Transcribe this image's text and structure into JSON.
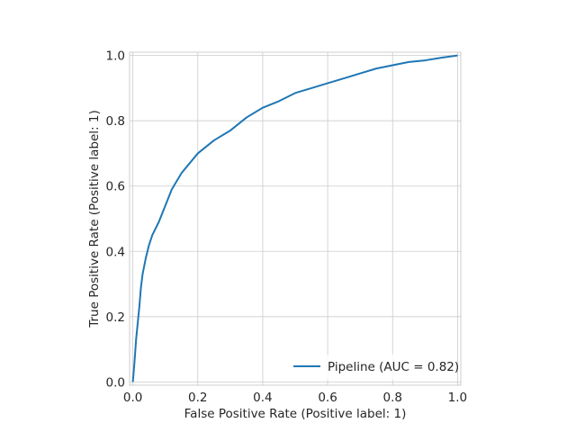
{
  "chart_data": {
    "type": "line",
    "xlabel": "False Positive Rate (Positive label: 1)",
    "ylabel": "True Positive Rate (Positive label: 1)",
    "xlim": [
      -0.01,
      1.01
    ],
    "ylim": [
      -0.01,
      1.01
    ],
    "xticks": [
      "0.0",
      "0.2",
      "0.4",
      "0.6",
      "0.8",
      "1.0"
    ],
    "yticks": [
      "0.0",
      "0.2",
      "0.4",
      "0.6",
      "0.8",
      "1.0"
    ],
    "grid": true,
    "legend_position": "lower-right",
    "series": [
      {
        "name": "Pipeline (AUC = 0.82)",
        "color": "#1f77b4",
        "x": [
          0.0,
          0.005,
          0.01,
          0.015,
          0.02,
          0.025,
          0.03,
          0.04,
          0.05,
          0.06,
          0.08,
          0.1,
          0.12,
          0.15,
          0.2,
          0.25,
          0.3,
          0.35,
          0.4,
          0.45,
          0.5,
          0.55,
          0.6,
          0.65,
          0.7,
          0.75,
          0.8,
          0.85,
          0.9,
          0.95,
          1.0
        ],
        "y": [
          0.0,
          0.06,
          0.13,
          0.18,
          0.23,
          0.29,
          0.33,
          0.38,
          0.42,
          0.45,
          0.49,
          0.54,
          0.59,
          0.64,
          0.7,
          0.74,
          0.77,
          0.81,
          0.84,
          0.86,
          0.885,
          0.9,
          0.915,
          0.93,
          0.945,
          0.96,
          0.97,
          0.98,
          0.985,
          0.993,
          1.0
        ]
      }
    ]
  }
}
